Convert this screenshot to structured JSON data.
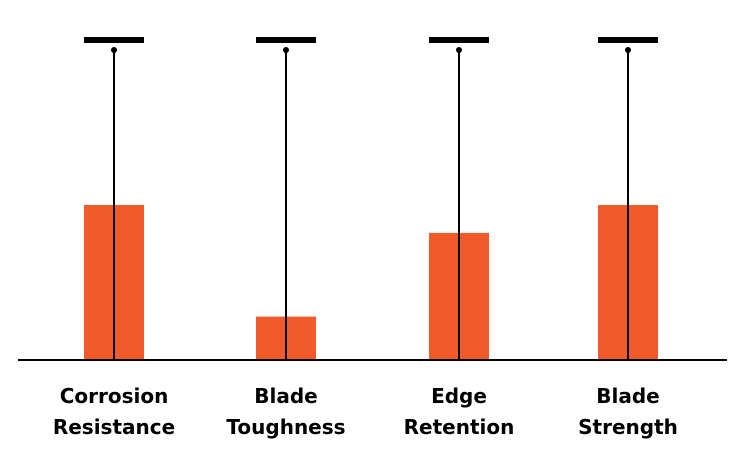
{
  "colors": {
    "bar": "#f15a2a",
    "line": "#000000",
    "background": "#ffffff"
  },
  "chart_data": {
    "type": "bar",
    "categories": [
      [
        "Corrosion",
        "Resistance"
      ],
      [
        "Blade",
        "Toughness"
      ],
      [
        "Edge",
        "Retention"
      ],
      [
        "Blade",
        "Strength"
      ]
    ],
    "values": [
      5,
      1.4,
      4.1,
      5
    ],
    "slider_max": 10,
    "ylim": [
      0,
      10
    ],
    "grid": false,
    "legend": "none"
  }
}
